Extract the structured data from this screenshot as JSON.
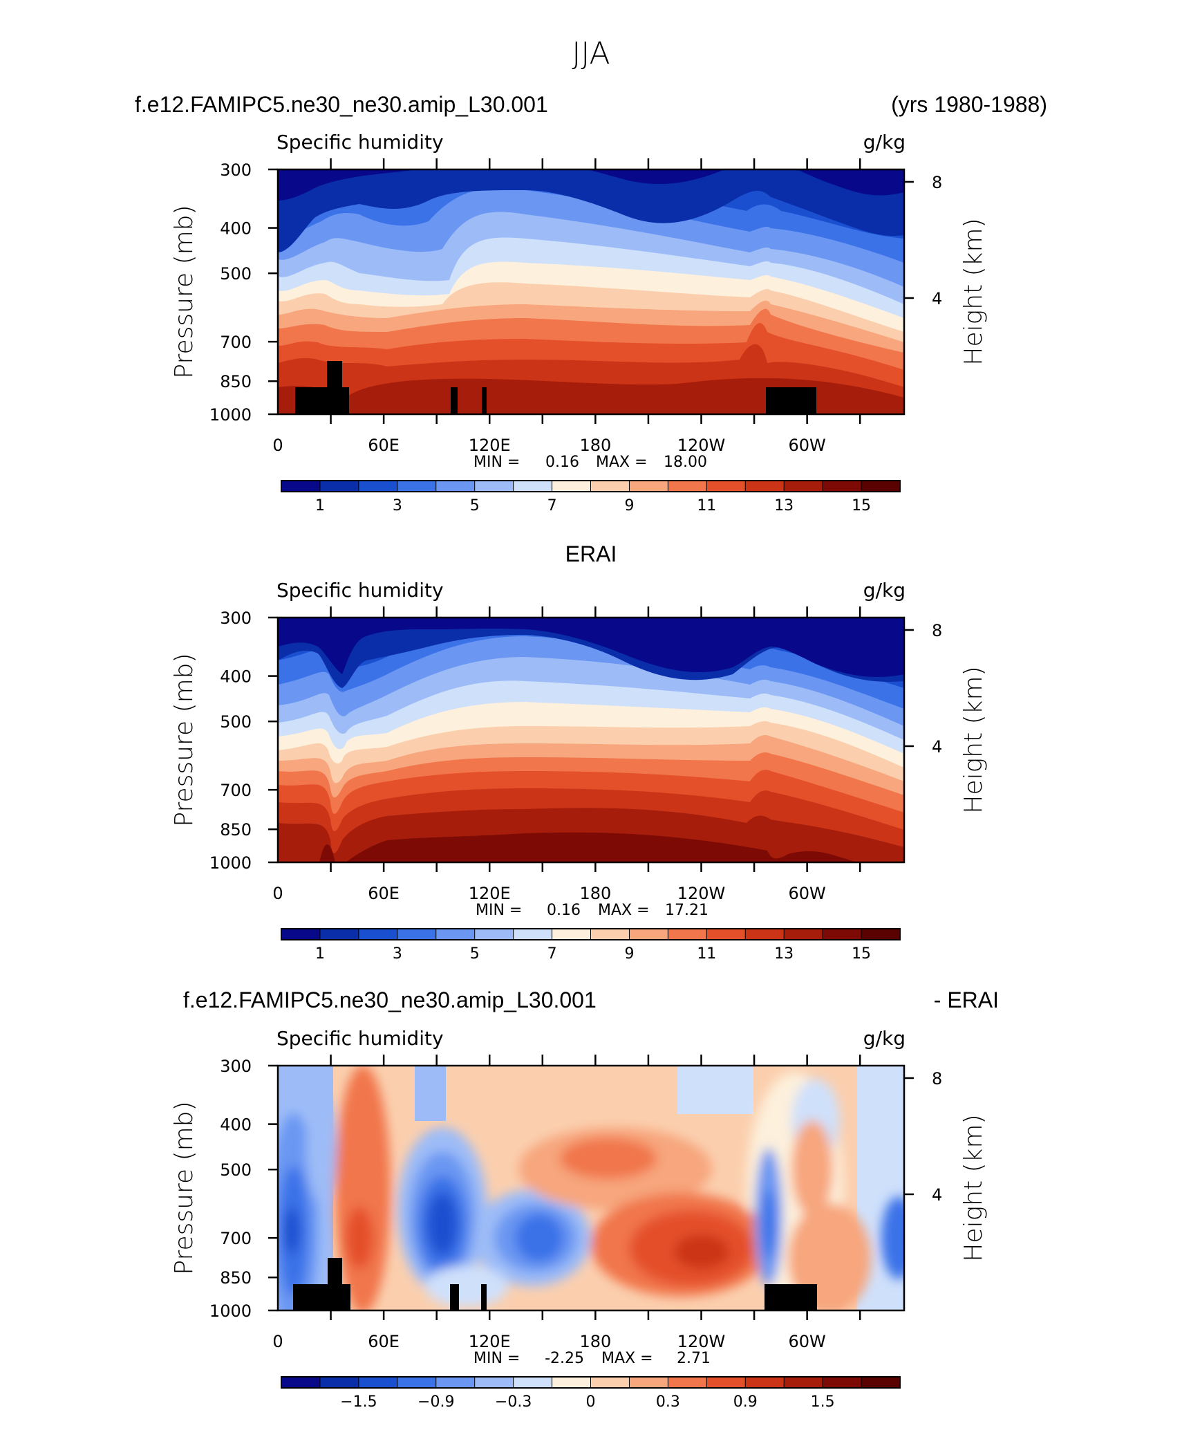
{
  "page": {
    "title": "JJA"
  },
  "panels": [
    {
      "id": "model",
      "header_left": "f.e12.FAMIPC5.ne30_ne30.amip_L30.001",
      "header_right": "(yrs 1980-1988)",
      "variable": "Specific humidity",
      "units": "g/kg",
      "stats": {
        "min_label": "MIN =",
        "min": "0.16",
        "max_label": "MAX =",
        "max": "18.00"
      },
      "colorbar_labels": [
        "1",
        "3",
        "5",
        "7",
        "9",
        "11",
        "13",
        "15"
      ]
    },
    {
      "id": "obs",
      "header_center": "ERAI",
      "variable": "Specific humidity",
      "units": "g/kg",
      "stats": {
        "min_label": "MIN =",
        "min": "0.16",
        "max_label": "MAX =",
        "max": "17.21"
      },
      "colorbar_labels": [
        "1",
        "3",
        "5",
        "7",
        "9",
        "11",
        "13",
        "15"
      ]
    },
    {
      "id": "diff",
      "header_left": "f.e12.FAMIPC5.ne30_ne30.amip_L30.001",
      "header_right": "- ERAI",
      "variable": "Specific humidity",
      "units": "g/kg",
      "stats": {
        "min_label": "MIN =",
        "min": "-2.25",
        "max_label": "MAX =",
        "max": "2.71"
      },
      "colorbar_labels": [
        "−1.5",
        "−0.9",
        "−0.3",
        "0",
        "0.3",
        "0.9",
        "1.5"
      ]
    }
  ],
  "axes": {
    "y_left_label": "Pressure (mb)",
    "y_right_label": "Height (km)",
    "pressure_ticks": [
      "300",
      "400",
      "500",
      "700",
      "850",
      "1000"
    ],
    "height_ticks": [
      "8",
      "4"
    ],
    "x_ticks": [
      "0",
      "60E",
      "120E",
      "180",
      "120W",
      "60W"
    ]
  },
  "colors": {
    "abs_palette": [
      "#08088a",
      "#0a2eaa",
      "#1a4fd0",
      "#3b72e8",
      "#6b97f2",
      "#9dbcf7",
      "#cfe0fb",
      "#fdf0dc",
      "#fbcfae",
      "#f7a67d",
      "#f1764c",
      "#e4502a",
      "#cc3417",
      "#a61e0b",
      "#7d0a05",
      "#5a0202"
    ],
    "diff_palette": [
      "#08088a",
      "#0a2eaa",
      "#1a4fd0",
      "#3b72e8",
      "#6b97f2",
      "#9dbcf7",
      "#cfe0fb",
      "#fdf0dc",
      "#fbcfae",
      "#f7a67d",
      "#f1764c",
      "#e4502a",
      "#cc3417",
      "#a61e0b",
      "#7d0a05",
      "#5a0202"
    ],
    "terrain": "#000000"
  },
  "chart_data": [
    {
      "type": "heatmap",
      "title": "JJA",
      "panel": "f.e12.FAMIPC5.ne30_ne30.amip_L30.001 (yrs 1980-1988)",
      "variable": "Specific humidity",
      "units": "g/kg",
      "xlabel": "",
      "ylabel": "Pressure (mb)",
      "y2label": "Height (km)",
      "x_ticks": [
        "0",
        "60E",
        "120E",
        "180",
        "120W",
        "60W"
      ],
      "y_ticks": [
        300,
        400,
        500,
        700,
        850,
        1000
      ],
      "y_log": true,
      "min": 0.16,
      "max": 18.0,
      "contour_levels": [
        1,
        2,
        3,
        4,
        5,
        6,
        7,
        8,
        9,
        10,
        11,
        12,
        13,
        14,
        15
      ]
    },
    {
      "type": "heatmap",
      "panel": "ERAI",
      "variable": "Specific humidity",
      "units": "g/kg",
      "ylabel": "Pressure (mb)",
      "y2label": "Height (km)",
      "x_ticks": [
        "0",
        "60E",
        "120E",
        "180",
        "120W",
        "60W"
      ],
      "y_ticks": [
        300,
        400,
        500,
        700,
        850,
        1000
      ],
      "y_log": true,
      "min": 0.16,
      "max": 17.21,
      "contour_levels": [
        1,
        2,
        3,
        4,
        5,
        6,
        7,
        8,
        9,
        10,
        11,
        12,
        13,
        14,
        15
      ]
    },
    {
      "type": "heatmap",
      "panel": "f.e12.FAMIPC5.ne30_ne30.amip_L30.001 - ERAI",
      "variable": "Specific humidity",
      "units": "g/kg",
      "ylabel": "Pressure (mb)",
      "y2label": "Height (km)",
      "x_ticks": [
        "0",
        "60E",
        "120E",
        "180",
        "120W",
        "60W"
      ],
      "y_ticks": [
        300,
        400,
        500,
        700,
        850,
        1000
      ],
      "y_log": true,
      "min": -2.25,
      "max": 2.71,
      "contour_levels": [
        -1.5,
        -1.2,
        -0.9,
        -0.6,
        -0.3,
        -0.1,
        0,
        0.1,
        0.3,
        0.6,
        0.9,
        1.2,
        1.5,
        1.8,
        2.1
      ]
    }
  ]
}
